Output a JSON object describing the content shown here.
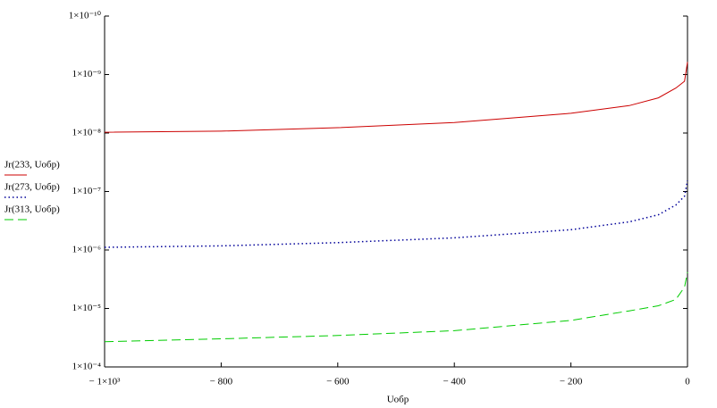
{
  "chart_data": {
    "type": "line",
    "x_label": "Uобр",
    "log_y": true,
    "xlim": [
      -1000,
      0
    ],
    "xticks": [
      {
        "value": -1000,
        "label": "− 1×10³"
      },
      {
        "value": -800,
        "label": "− 800"
      },
      {
        "value": -600,
        "label": "− 600"
      },
      {
        "value": -400,
        "label": "− 400"
      },
      {
        "value": -200,
        "label": "− 200"
      },
      0
    ],
    "ylim": [
      0.0001,
      1e-10
    ],
    "yticks": [
      {
        "value": 1e-10,
        "label": "1×10⁻¹⁰"
      },
      {
        "value": 1e-09,
        "label": "1×10⁻⁹"
      },
      {
        "value": 1e-08,
        "label": "1×10⁻⁸"
      },
      {
        "value": 1e-07,
        "label": "1×10⁻⁷"
      },
      {
        "value": 1e-06,
        "label": "1×10⁻⁶"
      },
      {
        "value": 1e-05,
        "label": "1×10⁻⁵"
      },
      {
        "value": 0.0001,
        "label": "1×10⁻⁴"
      }
    ],
    "x": [
      -1000,
      -800,
      -600,
      -400,
      -200,
      -100,
      -50,
      -20,
      -5,
      0
    ],
    "legend": "left",
    "series": [
      {
        "name": "Jr(233, Uобр)",
        "color": "#cc0000",
        "style": "solid",
        "values": [
          9.7e-09,
          9.3e-09,
          8.1e-09,
          6.6e-09,
          4.6e-09,
          3.4e-09,
          2.5e-09,
          1.7e-09,
          1.3e-09,
          6.1e-10
        ]
      },
      {
        "name": "Jr(273, Uобр)",
        "color": "#000099",
        "style": "dotted",
        "values": [
          9e-07,
          8.5e-07,
          7.5e-07,
          6.2e-07,
          4.5e-07,
          3.3e-07,
          2.5e-07,
          1.7e-07,
          1.2e-07,
          6.5e-08
        ]
      },
      {
        "name": "Jr(313, Uобр)",
        "color": "#00cc00",
        "style": "dashed",
        "values": [
          3.7e-05,
          3.3e-05,
          2.9e-05,
          2.4e-05,
          1.6e-05,
          1.1e-05,
          9e-06,
          7e-06,
          4.3e-06,
          2.4e-06
        ]
      }
    ]
  }
}
